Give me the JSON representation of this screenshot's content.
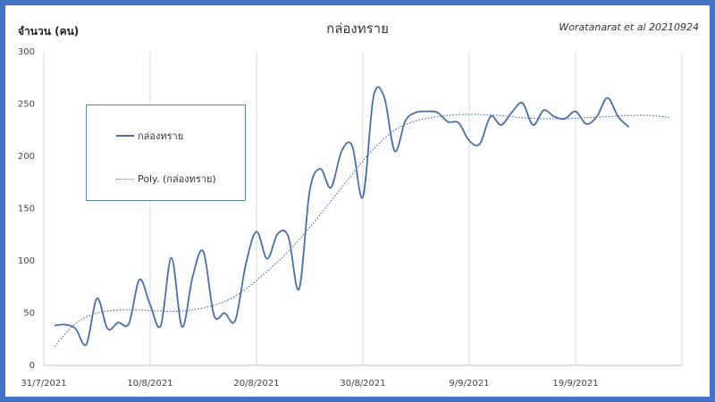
{
  "chart_data": {
    "type": "line",
    "title": "กล่องทราย",
    "credit": "Woratanarat et al 20210924",
    "ylabel": "จำนวน (คน)",
    "xlabel": "",
    "ylim": [
      0,
      300
    ],
    "yticks": [
      0,
      50,
      100,
      150,
      200,
      250,
      300
    ],
    "x_tick_labels": [
      "31/7/2021",
      "10/8/2021",
      "20/8/2021",
      "30/8/2021",
      "9/9/2021",
      "19/9/2021"
    ],
    "x_tick_days": [
      0,
      10,
      20,
      30,
      40,
      50
    ],
    "xlim_days": [
      0,
      60
    ],
    "grid": "vertical",
    "legend_position": "upper-left",
    "series": [
      {
        "name": "กล่องทราย",
        "style": "solid",
        "color": "#4a6fa5",
        "x_days": [
          1,
          2,
          3,
          4,
          5,
          6,
          7,
          8,
          9,
          10,
          11,
          12,
          13,
          14,
          15,
          16,
          17,
          18,
          19,
          20,
          21,
          22,
          23,
          24,
          25,
          26,
          27,
          28,
          29,
          30,
          31,
          32,
          33,
          34,
          35,
          36,
          37,
          38,
          39,
          40,
          41,
          42,
          43,
          44,
          45,
          46,
          47,
          48,
          49,
          50,
          51,
          52,
          53,
          54,
          55,
          56
        ],
        "values": [
          38,
          39,
          35,
          20,
          64,
          35,
          41,
          40,
          82,
          58,
          38,
          103,
          37,
          85,
          109,
          48,
          50,
          43,
          97,
          128,
          102,
          126,
          123,
          73,
          167,
          188,
          170,
          205,
          210,
          161,
          257,
          257,
          205,
          234,
          242,
          243,
          242,
          233,
          232,
          215,
          212,
          238,
          230,
          242,
          251,
          230,
          244,
          238,
          236,
          243,
          231,
          238,
          256,
          238,
          228,
          null
        ]
      },
      {
        "name": "Poly. (กล่องทราย)",
        "style": "dotted",
        "color": "#4a6fa5",
        "x_days": [
          1,
          3,
          5,
          7,
          9,
          11,
          13,
          15,
          17,
          19,
          21,
          23,
          25,
          27,
          29,
          31,
          33,
          35,
          37,
          39,
          41,
          43,
          45,
          47,
          49,
          51,
          53,
          55,
          57,
          59
        ],
        "values": [
          18,
          40,
          50,
          53,
          53,
          52,
          52,
          55,
          61,
          73,
          90,
          109,
          132,
          157,
          183,
          207,
          225,
          234,
          238,
          240,
          240,
          239,
          237,
          236,
          236,
          237,
          238,
          239,
          239,
          237
        ]
      }
    ]
  }
}
